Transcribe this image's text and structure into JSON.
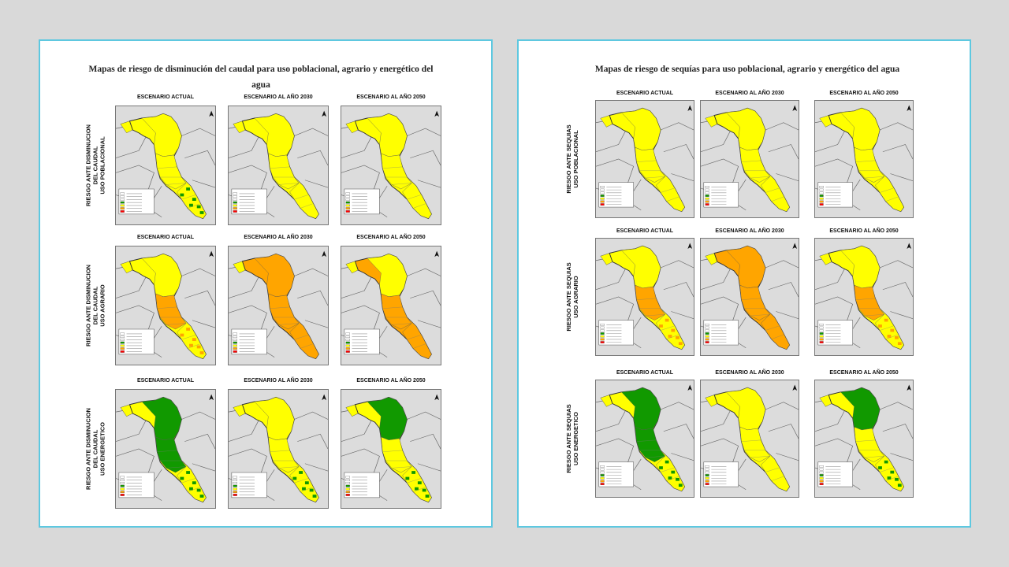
{
  "colors": {
    "panel_border": "#5ec8e0",
    "map_background": "#dcdcdc",
    "bajo": "#119900",
    "medio": "#ffff00",
    "alto": "#ffa500",
    "muy_alto": "#ff0000"
  },
  "columns": [
    "ESCENARIO ACTUAL",
    "ESCENARIO AL AÑO 2030",
    "ESCENARIO AL AÑO 2050"
  ],
  "legend_title": "LEYENDA",
  "panels": [
    {
      "title": "Mapas de riesgo de disminución del caudal para uso poblacional, agrario y energético del agua",
      "rows": [
        {
          "label": "RIESGO ANTE DISMINUCION\nDEL CAUDAL\nUSO POBLACIONAL",
          "maps": [
            "med_green_dots",
            "medio",
            "medio"
          ]
        },
        {
          "label": "RIESGO ANTE DISMINUCION\nDEL CAUDAL\nUSO AGRARIO",
          "maps": [
            "med_orange_mid",
            "alto",
            "alto_mid"
          ]
        },
        {
          "label": "RIESGO ANTE DISMINUCION\nDEL CAUDAL\nUSO ENERGETICO",
          "maps": [
            "bajo_top_mid",
            "med_green_dots",
            "bajo_top"
          ]
        }
      ]
    },
    {
      "title": "Mapas de riesgo de sequías para uso poblacional, agrario y energético del agua",
      "rows": [
        {
          "label": "RIESGO ANTE SEQUIAS\nUSO POBLACIONAL",
          "maps": [
            "medio",
            "medio",
            "medio"
          ]
        },
        {
          "label": "RIESGO ANTE SEQUIAS\nUSO AGRARIO",
          "maps": [
            "med_orange_mid",
            "alto",
            "med_orange_mid"
          ]
        },
        {
          "label": "RIESGO ANTE SEQUIAS\nUSO ENERGETICO",
          "maps": [
            "bajo_top_mid",
            "medio",
            "bajo_top"
          ]
        }
      ]
    }
  ]
}
